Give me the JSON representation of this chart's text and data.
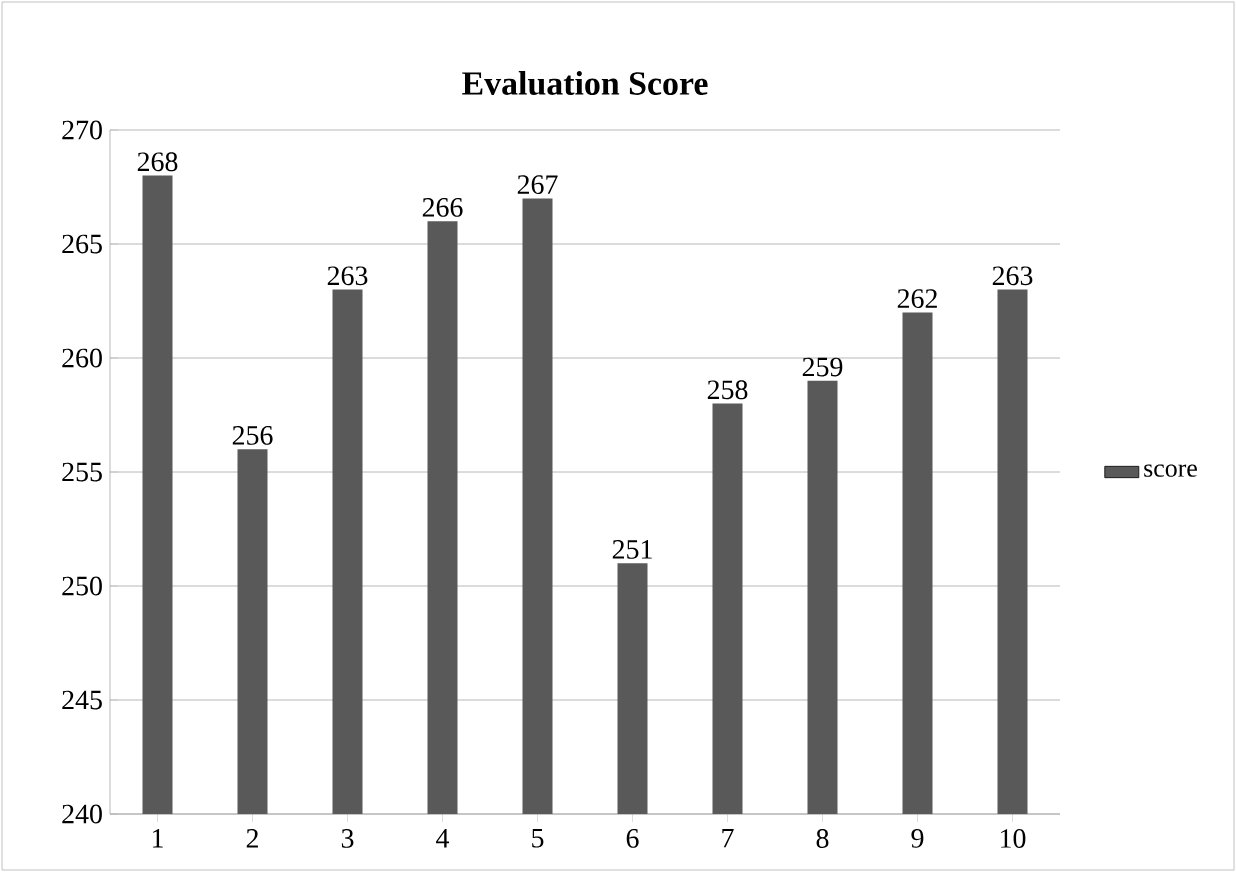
{
  "chart_data": {
    "type": "bar",
    "title": "Evaluation Score",
    "categories": [
      "1",
      "2",
      "3",
      "4",
      "5",
      "6",
      "7",
      "8",
      "9",
      "10"
    ],
    "series": [
      {
        "name": "score",
        "color": "#595959",
        "values": [
          268,
          256,
          263,
          266,
          267,
          251,
          258,
          259,
          262,
          263
        ]
      }
    ],
    "ylim": [
      240,
      270
    ],
    "yticks": [
      240,
      245,
      250,
      255,
      260,
      265,
      270
    ],
    "grid": "y",
    "legend": "right",
    "data_labels": true
  }
}
